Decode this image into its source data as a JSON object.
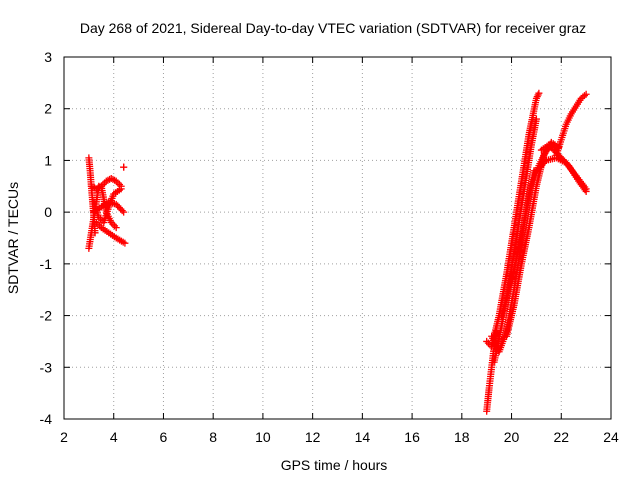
{
  "chart_data": {
    "type": "scatter",
    "title": "Day 268 of 2021, Sidereal Day-to-day VTEC variation (SDTVAR) for receiver graz",
    "xlabel": "GPS time / hours",
    "ylabel": "SDTVAR / TECUs",
    "xlim": [
      2,
      24
    ],
    "ylim": [
      -4,
      3
    ],
    "xticks": [
      "2",
      "4",
      "6",
      "8",
      "10",
      "12",
      "14",
      "16",
      "18",
      "20",
      "22",
      "24"
    ],
    "yticks": [
      "-4",
      "-3",
      "-2",
      "-1",
      "0",
      "1",
      "2",
      "3"
    ],
    "grid": true,
    "marker": "+",
    "series_color": "#ff0000",
    "segments": [
      {
        "x": [
          3.0,
          3.05,
          3.1,
          3.15,
          3.2,
          3.25
        ],
        "y": [
          1.05,
          0.8,
          0.5,
          0.2,
          -0.1,
          -0.4
        ]
      },
      {
        "x": [
          3.0,
          3.1,
          3.2,
          3.3,
          3.4
        ],
        "y": [
          -0.7,
          -0.4,
          -0.1,
          0.2,
          0.5
        ]
      },
      {
        "x": [
          3.1,
          3.3,
          3.5,
          3.7,
          3.9,
          4.1,
          4.3
        ],
        "y": [
          0.5,
          0.45,
          0.5,
          0.6,
          0.65,
          0.6,
          0.5
        ]
      },
      {
        "x": [
          3.2,
          3.5,
          3.8,
          4.1,
          4.4
        ],
        "y": [
          0.0,
          0.1,
          0.2,
          0.15,
          0.0
        ]
      },
      {
        "x": [
          3.3,
          3.5,
          3.8,
          4.1,
          4.45
        ],
        "y": [
          -0.2,
          -0.3,
          -0.4,
          -0.5,
          -0.6
        ]
      },
      {
        "x": [
          3.2,
          3.4,
          3.6,
          3.8,
          4.0,
          4.3
        ],
        "y": [
          0.2,
          -0.1,
          -0.2,
          0.1,
          0.35,
          0.45
        ]
      },
      {
        "x": [
          3.5,
          3.7,
          3.9,
          4.1
        ],
        "y": [
          0.5,
          0.0,
          -0.2,
          -0.3
        ]
      },
      {
        "x": [
          4.4,
          4.4
        ],
        "y": [
          0.87,
          0.87
        ]
      },
      {
        "x": [
          19.0,
          19.1,
          19.2,
          19.3,
          19.4
        ],
        "y": [
          -3.85,
          -3.4,
          -3.0,
          -2.6,
          -2.3
        ]
      },
      {
        "x": [
          19.0,
          19.2,
          19.5,
          19.8,
          20.1,
          20.4,
          20.7,
          21.0,
          21.1
        ],
        "y": [
          -2.5,
          -2.6,
          -2.0,
          -1.2,
          -0.3,
          0.6,
          1.5,
          2.2,
          2.3
        ]
      },
      {
        "x": [
          19.3,
          19.6,
          19.9,
          20.2,
          20.5,
          20.8,
          21.0
        ],
        "y": [
          -2.9,
          -2.2,
          -1.4,
          -0.5,
          0.4,
          1.3,
          1.8
        ]
      },
      {
        "x": [
          19.2,
          19.5,
          19.8,
          20.1,
          20.4,
          20.6,
          20.9
        ],
        "y": [
          -2.4,
          -2.7,
          -2.3,
          -1.5,
          -0.6,
          0.1,
          0.8
        ]
      },
      {
        "x": [
          19.8,
          20.1,
          20.4,
          20.7,
          21.0,
          21.3,
          21.6,
          21.9
        ],
        "y": [
          -2.4,
          -1.8,
          -1.0,
          -0.3,
          0.5,
          1.1,
          1.35,
          1.25
        ]
      },
      {
        "x": [
          19.6,
          19.9,
          20.2,
          20.5,
          20.8,
          21.1,
          21.4,
          21.7
        ],
        "y": [
          -2.0,
          -1.5,
          -0.9,
          -0.2,
          0.5,
          0.9,
          1.2,
          1.3
        ]
      },
      {
        "x": [
          21.0,
          21.4,
          21.8,
          22.2,
          22.6,
          23.0
        ],
        "y": [
          0.8,
          1.0,
          1.05,
          0.95,
          0.7,
          0.45
        ]
      },
      {
        "x": [
          21.2,
          21.5,
          21.9,
          22.3,
          22.7,
          23.0
        ],
        "y": [
          1.2,
          1.3,
          1.1,
          0.9,
          0.6,
          0.4
        ]
      },
      {
        "x": [
          21.8,
          22.0,
          22.2,
          22.4,
          22.6,
          22.8,
          23.0
        ],
        "y": [
          1.1,
          1.4,
          1.7,
          1.9,
          2.05,
          2.2,
          2.28
        ]
      }
    ]
  }
}
